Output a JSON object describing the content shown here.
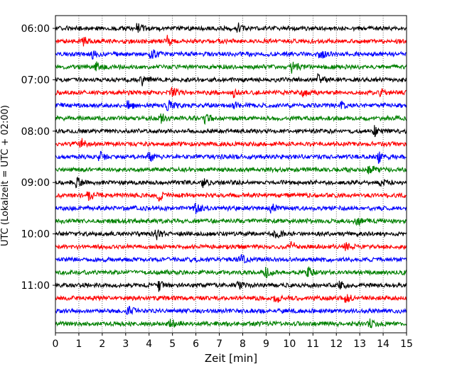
{
  "chart_data": {
    "type": "line",
    "title": "",
    "xlabel": "Zeit  [min]",
    "ylabel": "UTC (Lokalzeit = UTC + 02:00)",
    "xlim": [
      0,
      15
    ],
    "x_ticks": [
      0,
      1,
      2,
      3,
      4,
      5,
      6,
      7,
      8,
      9,
      10,
      11,
      12,
      13,
      14,
      15
    ],
    "y_tick_labels": [
      "06:00",
      "07:00",
      "08:00",
      "09:00",
      "10:00",
      "11:00"
    ],
    "trace_interval_minutes": 15,
    "grid": "vertical dotted",
    "trace_colors": [
      "#000000",
      "#ff0000",
      "#0000ff",
      "#008000"
    ],
    "traces": [
      {
        "start": "06:00",
        "events_min": [
          3.5,
          7.8
        ]
      },
      {
        "start": "06:15",
        "events_min": [
          1.2,
          4.8
        ]
      },
      {
        "start": "06:30",
        "events_min": [
          1.5,
          4.1,
          11.3
        ]
      },
      {
        "start": "06:45",
        "events_min": [
          1.7,
          10.1
        ]
      },
      {
        "start": "07:00",
        "events_min": [
          3.7,
          11.2
        ]
      },
      {
        "start": "07:15",
        "events_min": [
          5.0,
          7.6,
          10.6,
          13.8
        ]
      },
      {
        "start": "07:30",
        "events_min": [
          3.1,
          4.8,
          7.6,
          12.2
        ]
      },
      {
        "start": "07:45",
        "events_min": [
          4.5,
          6.4
        ]
      },
      {
        "start": "08:00",
        "events_min": [
          13.6
        ]
      },
      {
        "start": "08:15",
        "events_min": [
          1.1
        ]
      },
      {
        "start": "08:30",
        "events_min": [
          1.9,
          4.0,
          13.8
        ]
      },
      {
        "start": "08:45",
        "events_min": [
          13.4
        ]
      },
      {
        "start": "09:00",
        "events_min": [
          0.9,
          6.3,
          13.9
        ]
      },
      {
        "start": "09:15",
        "events_min": [
          1.4,
          4.4
        ]
      },
      {
        "start": "09:30",
        "events_min": [
          6.0,
          9.2
        ]
      },
      {
        "start": "09:45",
        "events_min": [
          12.9
        ]
      },
      {
        "start": "10:00",
        "events_min": [
          4.3,
          9.4
        ]
      },
      {
        "start": "10:15",
        "events_min": [
          10.1,
          12.4
        ]
      },
      {
        "start": "10:30",
        "events_min": [
          7.9
        ]
      },
      {
        "start": "10:45",
        "events_min": [
          9.0,
          10.8
        ]
      },
      {
        "start": "11:00",
        "events_min": [
          4.4,
          7.8,
          12.1
        ]
      },
      {
        "start": "11:15",
        "events_min": [
          9.4,
          12.4
        ]
      },
      {
        "start": "11:30",
        "events_min": [
          3.1
        ]
      },
      {
        "start": "11:45",
        "events_min": [
          4.9,
          13.4
        ]
      }
    ]
  }
}
